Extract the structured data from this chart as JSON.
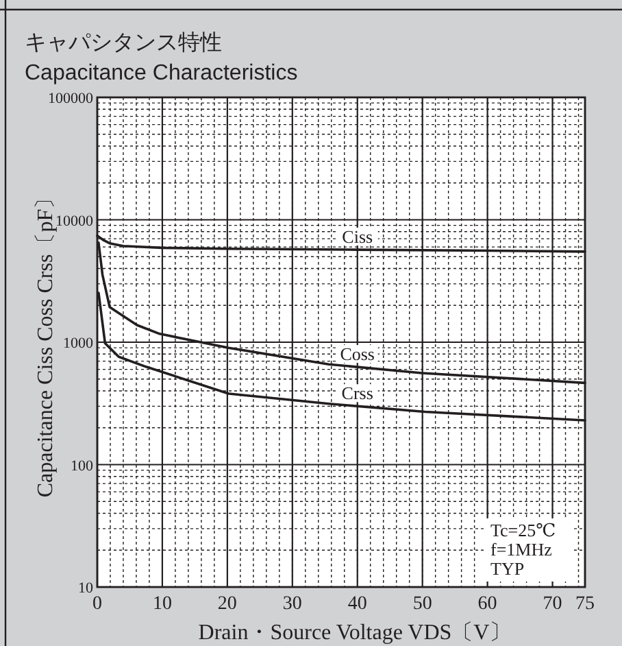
{
  "chart_data": {
    "type": "line",
    "title": "キャパシタンス特性",
    "subtitle": "Capacitance Characteristics",
    "xlabel": "Drain・Source Voltage  VDS〔V〕",
    "ylabel": "Capacitance  Ciss Coss Crss〔pF〕",
    "log": "y",
    "grid": true,
    "marker": "none",
    "line_style": "solid",
    "xlim": [
      0,
      75
    ],
    "xticks": [
      0,
      10,
      20,
      30,
      40,
      50,
      60,
      70,
      75
    ],
    "ylim": [
      10,
      100000
    ],
    "yticks": [
      10,
      100,
      1000,
      10000,
      100000
    ],
    "series": [
      {
        "name": "Ciss",
        "color": "#231f20",
        "x": [
          0,
          1,
          2,
          4,
          10,
          20,
          40,
          60,
          75
        ],
        "values": [
          7400,
          6800,
          6400,
          6100,
          5900,
          5800,
          5700,
          5600,
          5500
        ]
      },
      {
        "name": "Coss",
        "color": "#231f20",
        "x": [
          0.2,
          0.8,
          1.9,
          6.1,
          9.6,
          20.2,
          35.6,
          49.9,
          75
        ],
        "values": [
          6500,
          3560,
          1940,
          1380,
          1170,
          900,
          660,
          560,
          465
        ]
      },
      {
        "name": "Crss",
        "color": "#231f20",
        "x": [
          0.2,
          1.2,
          3.3,
          7.5,
          20.2,
          35.6,
          50.4,
          75
        ],
        "values": [
          2530,
          980,
          760,
          630,
          380,
          314,
          270,
          230
        ]
      }
    ],
    "annotations": [
      "Tc=25℃",
      "f=1MHz",
      "TYP"
    ]
  }
}
